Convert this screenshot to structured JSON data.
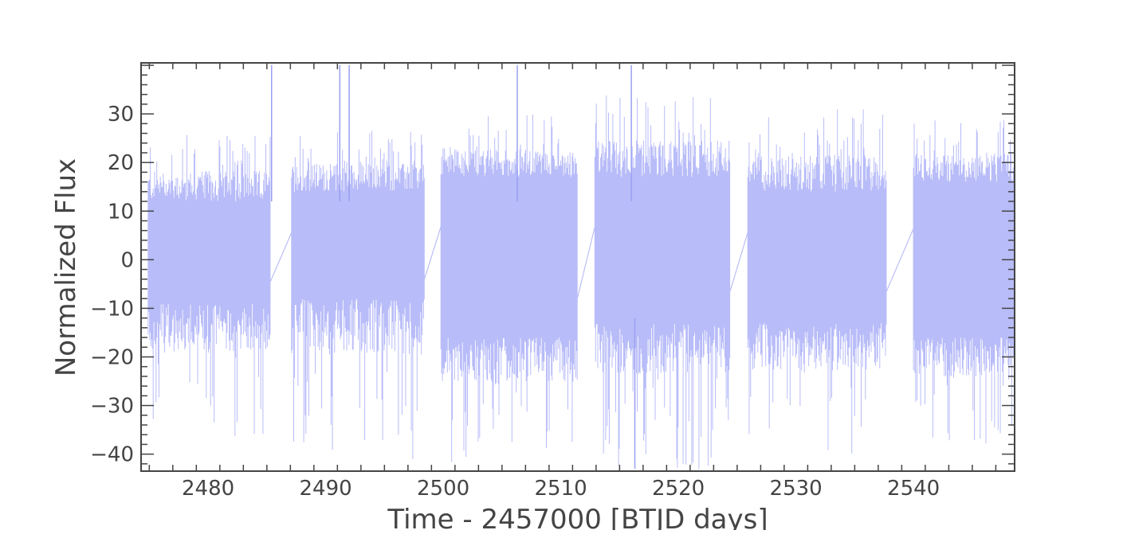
{
  "chart_data": {
    "type": "line",
    "title": "",
    "xlabel": "Time - 2457000 [BTJD days]",
    "ylabel": "Normalized Flux",
    "xlim": [
      2474.3,
      2548.6
    ],
    "ylim": [
      -43.5,
      40.5
    ],
    "grid": false,
    "legend": "none",
    "line_color": "#b8bcf8",
    "line_edge_color": "#9aa0f2",
    "axis_color": "#444444",
    "x_ticks": [
      2480,
      2490,
      2500,
      2510,
      2520,
      2530,
      2540
    ],
    "x_tick_labels": [
      "2480",
      "2490",
      "2500",
      "2510",
      "2520",
      "2530",
      "2540"
    ],
    "y_ticks": [
      -40,
      -30,
      -20,
      -10,
      0,
      10,
      20,
      30
    ],
    "y_tick_labels": [
      "−40",
      "−30",
      "−20",
      "−10",
      "0",
      "10",
      "20",
      "30"
    ],
    "segments": [
      {
        "start": 2474.9,
        "end": 2485.3,
        "core_high": 12,
        "core_low": -9,
        "spike_high": 26,
        "spike_low": -38
      },
      {
        "start": 2487.1,
        "end": 2498.4,
        "core_high": 14,
        "core_low": -8,
        "spike_high": 27,
        "spike_low": -41
      },
      {
        "start": 2499.8,
        "end": 2511.4,
        "core_high": 17,
        "core_low": -16,
        "spike_high": 30,
        "spike_low": -42
      },
      {
        "start": 2512.9,
        "end": 2524.4,
        "core_high": 17,
        "core_low": -13,
        "spike_high": 34,
        "spike_low": -43
      },
      {
        "start": 2525.9,
        "end": 2537.7,
        "core_high": 14,
        "core_low": -13,
        "spike_high": 31,
        "spike_low": -41
      },
      {
        "start": 2540.0,
        "end": 2548.6,
        "core_high": 16,
        "core_low": -16,
        "spike_high": 29,
        "spike_low": -39
      }
    ],
    "outliers": [
      {
        "x": 2485.4,
        "y": 40
      },
      {
        "x": 2491.2,
        "y": 40
      },
      {
        "x": 2492.0,
        "y": 40
      },
      {
        "x": 2506.3,
        "y": 40
      },
      {
        "x": 2516.0,
        "y": 40
      },
      {
        "x": 2516.3,
        "y": -43
      }
    ]
  }
}
